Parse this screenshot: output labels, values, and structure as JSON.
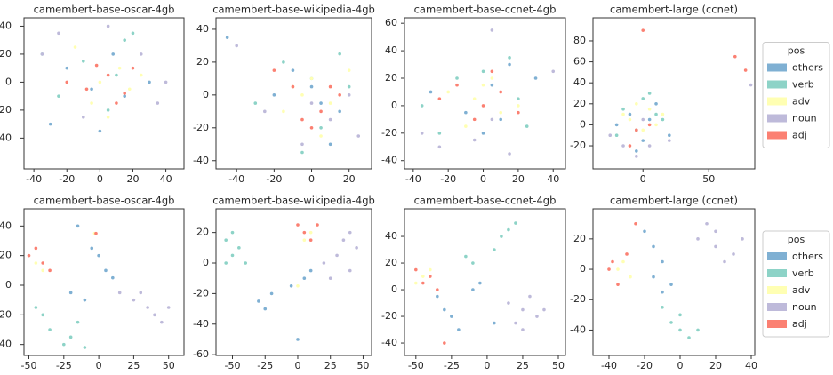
{
  "chart_data": [
    {
      "type": "scatter",
      "title": "camembert-base-oscar-4gb",
      "xlim": [
        -46,
        51
      ],
      "ylim": [
        -62,
        46
      ],
      "xticks": [
        -40,
        -20,
        0,
        20,
        40
      ],
      "yticks": [
        40,
        20,
        0,
        -20,
        -40
      ],
      "series": [
        {
          "name": "others",
          "color": "#7fb0d3",
          "x": [
            -20,
            -5,
            8,
            15,
            30,
            -30,
            0
          ],
          "y": [
            10,
            -5,
            20,
            -10,
            0,
            -30,
            -35
          ]
        },
        {
          "name": "verb",
          "color": "#8dd3c7",
          "x": [
            -10,
            15,
            20,
            5,
            -25,
            10,
            -35
          ],
          "y": [
            15,
            30,
            35,
            -20,
            -10,
            5,
            20
          ]
        },
        {
          "name": "adv",
          "color": "#ffffb3",
          "x": [
            0,
            12,
            -5,
            25,
            -15,
            5,
            18
          ],
          "y": [
            0,
            10,
            -15,
            5,
            25,
            -25,
            -5
          ]
        },
        {
          "name": "noun",
          "color": "#bebada",
          "x": [
            -35,
            -25,
            -10,
            5,
            25,
            35,
            40
          ],
          "y": [
            20,
            35,
            -25,
            40,
            20,
            -15,
            0
          ]
        },
        {
          "name": "adj",
          "color": "#fb8072",
          "x": [
            -8,
            5,
            15,
            -20,
            20,
            -2,
            10
          ],
          "y": [
            -5,
            5,
            -8,
            0,
            10,
            12,
            -15
          ]
        }
      ]
    },
    {
      "type": "scatter",
      "title": "camembert-base-wikipedia-4gb",
      "xlim": [
        -51,
        32
      ],
      "ylim": [
        -45,
        47
      ],
      "xticks": [
        -40,
        -20,
        0,
        20
      ],
      "yticks": [
        40,
        20,
        0,
        -20,
        -40
      ],
      "series": [
        {
          "name": "others",
          "color": "#7fb0d3",
          "x": [
            -45,
            -10,
            0,
            5,
            15,
            -20,
            10
          ],
          "y": [
            35,
            15,
            5,
            -5,
            -10,
            0,
            -30
          ]
        },
        {
          "name": "verb",
          "color": "#8dd3c7",
          "x": [
            -15,
            0,
            15,
            -30,
            20,
            5,
            -5
          ],
          "y": [
            20,
            10,
            25,
            -5,
            5,
            -20,
            -35
          ]
        },
        {
          "name": "adv",
          "color": "#ffffb3",
          "x": [
            -5,
            10,
            0,
            20,
            -15,
            5,
            -10
          ],
          "y": [
            0,
            -5,
            10,
            15,
            -10,
            -25,
            5
          ]
        },
        {
          "name": "noun",
          "color": "#bebada",
          "x": [
            -40,
            -5,
            10,
            25,
            0,
            20,
            -25
          ],
          "y": [
            30,
            -30,
            -15,
            -25,
            -5,
            0,
            -10
          ]
        },
        {
          "name": "adj",
          "color": "#fb8072",
          "x": [
            -10,
            5,
            0,
            15,
            -20,
            10,
            -5
          ],
          "y": [
            5,
            -10,
            -20,
            0,
            15,
            5,
            -15
          ]
        }
      ]
    },
    {
      "type": "scatter",
      "title": "camembert-base-ccnet-4gb",
      "xlim": [
        -45,
        47
      ],
      "ylim": [
        -46,
        64
      ],
      "xticks": [
        -40,
        -20,
        0,
        20,
        40
      ],
      "yticks": [
        60,
        40,
        20,
        0,
        -20,
        -40
      ],
      "series": [
        {
          "name": "others",
          "color": "#7fb0d3",
          "x": [
            -30,
            -10,
            5,
            15,
            10,
            30,
            0
          ],
          "y": [
            10,
            -5,
            15,
            30,
            -10,
            20,
            -20
          ]
        },
        {
          "name": "verb",
          "color": "#8dd3c7",
          "x": [
            -35,
            -15,
            0,
            15,
            25,
            20,
            -25
          ],
          "y": [
            0,
            20,
            25,
            35,
            -15,
            5,
            -20
          ]
        },
        {
          "name": "adv",
          "color": "#ffffb3",
          "x": [
            -20,
            -5,
            10,
            0,
            20,
            -10,
            5
          ],
          "y": [
            10,
            5,
            -5,
            15,
            0,
            -15,
            20
          ]
        },
        {
          "name": "noun",
          "color": "#bebada",
          "x": [
            -35,
            -25,
            -5,
            5,
            15,
            40,
            5
          ],
          "y": [
            -20,
            -30,
            -25,
            55,
            -35,
            25,
            -10
          ]
        },
        {
          "name": "adj",
          "color": "#fb8072",
          "x": [
            -15,
            0,
            10,
            -5,
            20,
            5,
            -25
          ],
          "y": [
            15,
            0,
            10,
            -10,
            -5,
            25,
            5
          ]
        }
      ]
    },
    {
      "type": "scatter",
      "title": "camembert-large (ccnet)",
      "xlim": [
        -38,
        85
      ],
      "ylim": [
        -42,
        102
      ],
      "xticks": [
        0,
        50
      ],
      "yticks": [
        80,
        60,
        40,
        20,
        0,
        -20
      ],
      "legend": "right",
      "legend_title": "pos",
      "series": [
        {
          "name": "others",
          "color": "#7fb0d3",
          "x": [
            -20,
            -10,
            0,
            10,
            20,
            -5,
            5
          ],
          "y": [
            0,
            10,
            -15,
            20,
            -10,
            -25,
            5
          ]
        },
        {
          "name": "verb",
          "color": "#8dd3c7",
          "x": [
            -15,
            0,
            10,
            -5,
            15,
            5,
            -20
          ],
          "y": [
            15,
            25,
            10,
            -5,
            5,
            30,
            -10
          ]
        },
        {
          "name": "adv",
          "color": "#ffffb3",
          "x": [
            -10,
            5,
            0,
            -5,
            10,
            15,
            -15
          ],
          "y": [
            5,
            15,
            -5,
            20,
            0,
            10,
            10
          ]
        },
        {
          "name": "noun",
          "color": "#bebada",
          "x": [
            -25,
            -15,
            -5,
            5,
            20,
            0,
            82
          ],
          "y": [
            -10,
            -20,
            -30,
            -20,
            -15,
            5,
            38
          ]
        },
        {
          "name": "adj",
          "color": "#fb8072",
          "x": [
            -5,
            5,
            0,
            70,
            78,
            -10
          ],
          "y": [
            -5,
            0,
            90,
            65,
            52,
            -20
          ]
        }
      ]
    },
    {
      "type": "scatter",
      "title": "camembert-base-oscar-4gb",
      "xlim": [
        -53.5,
        61
      ],
      "ylim": [
        -47.4,
        51.6
      ],
      "xticks": [
        -50,
        -25,
        0,
        25,
        50
      ],
      "yticks": [
        40,
        20,
        0,
        -20,
        -40
      ],
      "series": [
        {
          "name": "others",
          "color": "#7fb0d3",
          "x": [
            -15,
            -5,
            0,
            5,
            -20,
            10,
            -10
          ],
          "y": [
            40,
            25,
            20,
            10,
            -5,
            5,
            -10
          ]
        },
        {
          "name": "verb",
          "color": "#8dd3c7",
          "x": [
            -40,
            -35,
            -25,
            -20,
            -15,
            -10,
            -45
          ],
          "y": [
            -20,
            -30,
            -40,
            -35,
            -25,
            -42,
            -15
          ]
        },
        {
          "name": "adv",
          "color": "#ffffb3",
          "x": [
            -45,
            -40,
            -3
          ],
          "y": [
            15,
            10,
            35
          ]
        },
        {
          "name": "noun",
          "color": "#bebada",
          "x": [
            15,
            25,
            35,
            40,
            45,
            30,
            50
          ],
          "y": [
            -5,
            -10,
            -15,
            -20,
            -25,
            -5,
            -15
          ]
        },
        {
          "name": "adj",
          "color": "#fb8072",
          "x": [
            -50,
            -45,
            -40,
            -35,
            -2
          ],
          "y": [
            20,
            25,
            15,
            10,
            35
          ]
        }
      ]
    },
    {
      "type": "scatter",
      "title": "camembert-base-wikipedia-4gb",
      "xlim": [
        -62.6,
        56.5
      ],
      "ylim": [
        -60.5,
        35.5
      ],
      "xticks": [
        -50,
        -25,
        0,
        25,
        50
      ],
      "yticks": [
        20,
        0,
        -20,
        -40,
        -60
      ],
      "series": [
        {
          "name": "others",
          "color": "#7fb0d3",
          "x": [
            -30,
            -25,
            -20,
            -5,
            5,
            10,
            0
          ],
          "y": [
            -25,
            -30,
            -20,
            -15,
            -10,
            -5,
            -50
          ]
        },
        {
          "name": "verb",
          "color": "#8dd3c7",
          "x": [
            -55,
            -50,
            -45,
            -40,
            -55,
            -50
          ],
          "y": [
            15,
            5,
            10,
            0,
            0,
            20
          ]
        },
        {
          "name": "adv",
          "color": "#ffffb3",
          "x": [
            5,
            10,
            0
          ],
          "y": [
            15,
            20,
            -15
          ]
        },
        {
          "name": "noun",
          "color": "#bebada",
          "x": [
            20,
            30,
            40,
            45,
            35,
            25,
            40
          ],
          "y": [
            0,
            5,
            -5,
            10,
            15,
            -10,
            20
          ]
        },
        {
          "name": "adj",
          "color": "#fb8072",
          "x": [
            0,
            5,
            10,
            15
          ],
          "y": [
            25,
            20,
            15,
            25
          ]
        }
      ]
    },
    {
      "type": "scatter",
      "title": "camembert-base-ccnet-4gb",
      "xlim": [
        -58,
        55
      ],
      "ylim": [
        -49.3,
        60.7
      ],
      "xticks": [
        -50,
        -25,
        0,
        25,
        50
      ],
      "yticks": [
        40,
        20,
        0,
        -20,
        -40
      ],
      "series": [
        {
          "name": "others",
          "color": "#7fb0d3",
          "x": [
            -30,
            -25,
            -20,
            -35,
            -10,
            -5,
            5
          ],
          "y": [
            -15,
            -20,
            -30,
            -5,
            0,
            5,
            -25
          ]
        },
        {
          "name": "verb",
          "color": "#8dd3c7",
          "x": [
            5,
            10,
            15,
            -15,
            -10,
            20
          ],
          "y": [
            30,
            40,
            45,
            25,
            20,
            50
          ]
        },
        {
          "name": "adv",
          "color": "#ffffb3",
          "x": [
            -45,
            -40,
            -50
          ],
          "y": [
            10,
            15,
            5
          ]
        },
        {
          "name": "noun",
          "color": "#bebada",
          "x": [
            15,
            25,
            35,
            30,
            20,
            40,
            25
          ],
          "y": [
            -10,
            -15,
            -20,
            -5,
            -25,
            -15,
            -30
          ]
        },
        {
          "name": "adj",
          "color": "#fb8072",
          "x": [
            -50,
            -45,
            -40,
            -35,
            -30
          ],
          "y": [
            15,
            5,
            10,
            0,
            -40
          ]
        }
      ]
    },
    {
      "type": "scatter",
      "title": "camembert-large (ccnet)",
      "xlim": [
        -49,
        42
      ],
      "ylim": [
        -56.7,
        39.8
      ],
      "xticks": [
        -40,
        -20,
        0,
        20,
        40
      ],
      "yticks": [
        20,
        0,
        -20,
        -40
      ],
      "legend": "right",
      "legend_title": "pos",
      "series": [
        {
          "name": "others",
          "color": "#7fb0d3",
          "x": [
            -20,
            -15,
            -10,
            -5,
            -15,
            -10
          ],
          "y": [
            25,
            15,
            5,
            -10,
            -5,
            -15
          ]
        },
        {
          "name": "verb",
          "color": "#8dd3c7",
          "x": [
            -5,
            0,
            5,
            10,
            -10,
            0
          ],
          "y": [
            -35,
            -40,
            -45,
            -40,
            -25,
            -30
          ]
        },
        {
          "name": "adv",
          "color": "#ffffb3",
          "x": [
            -35,
            -32,
            -28
          ],
          "y": [
            0,
            5,
            -5
          ]
        },
        {
          "name": "noun",
          "color": "#bebada",
          "x": [
            10,
            20,
            25,
            30,
            15,
            20,
            35
          ],
          "y": [
            20,
            15,
            5,
            10,
            30,
            25,
            20
          ]
        },
        {
          "name": "adj",
          "color": "#fb8072",
          "x": [
            -40,
            -38,
            -35,
            -30,
            -25
          ],
          "y": [
            0,
            5,
            -10,
            10,
            30
          ]
        }
      ]
    }
  ]
}
